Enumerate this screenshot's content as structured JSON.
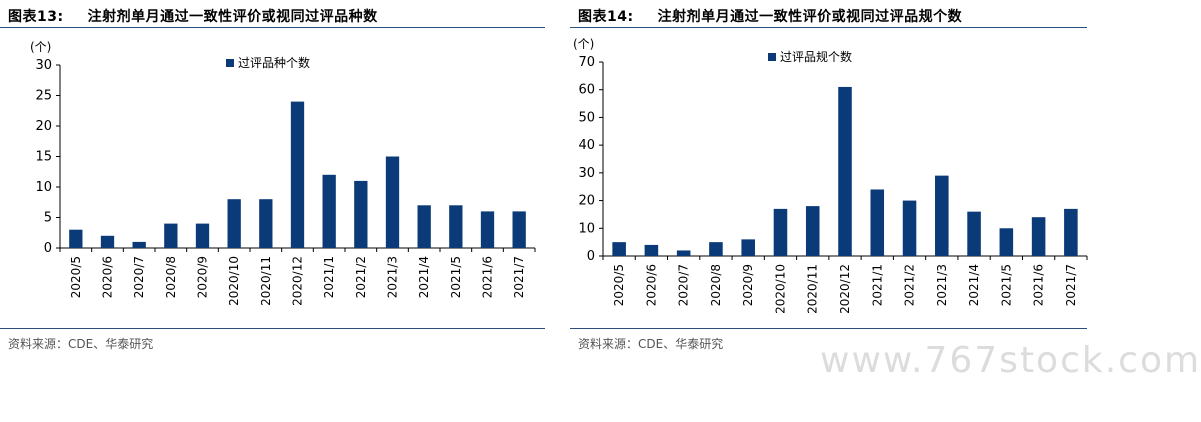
{
  "panels": [
    {
      "fig_label": "图表13:",
      "title": "注射剂单月通过一致性评价或视同过评品种数",
      "source": "资料来源：CDE、华泰研究",
      "chart_data": {
        "type": "bar",
        "unit_label": "(个)",
        "categories": [
          "2020/5",
          "2020/6",
          "2020/7",
          "2020/8",
          "2020/9",
          "2020/10",
          "2020/11",
          "2020/12",
          "2021/1",
          "2021/2",
          "2021/3",
          "2021/4",
          "2021/5",
          "2021/6",
          "2021/7"
        ],
        "series": [
          {
            "name": "过评品种个数",
            "values": [
              3,
              2,
              1,
              4,
              4,
              8,
              8,
              24,
              12,
              11,
              15,
              7,
              7,
              6,
              6
            ]
          }
        ],
        "ylim": [
          0,
          30
        ],
        "yticks": [
          0,
          5,
          10,
          15,
          20,
          25,
          30
        ],
        "color": "#0b3a78",
        "legend_position": "top-center",
        "grid": false
      }
    },
    {
      "fig_label": "图表14:",
      "title": "注射剂单月通过一致性评价或视同过评品规个数",
      "source": "资料来源：CDE、华泰研究",
      "chart_data": {
        "type": "bar",
        "unit_label": "(个)",
        "categories": [
          "2020/5",
          "2020/6",
          "2020/7",
          "2020/8",
          "2020/9",
          "2020/10",
          "2020/11",
          "2020/12",
          "2021/1",
          "2021/2",
          "2021/3",
          "2021/4",
          "2021/5",
          "2021/6",
          "2021/7"
        ],
        "series": [
          {
            "name": "过评品规个数",
            "values": [
              5,
              4,
              2,
              5,
              6,
              17,
              18,
              61,
              24,
              20,
              29,
              16,
              10,
              14,
              17
            ]
          }
        ],
        "ylim": [
          0,
          70
        ],
        "yticks": [
          0,
          10,
          20,
          30,
          40,
          50,
          60,
          70
        ],
        "color": "#0b3a78",
        "legend_position": "top-center",
        "grid": false
      }
    }
  ],
  "watermark": "www.767stock.com"
}
